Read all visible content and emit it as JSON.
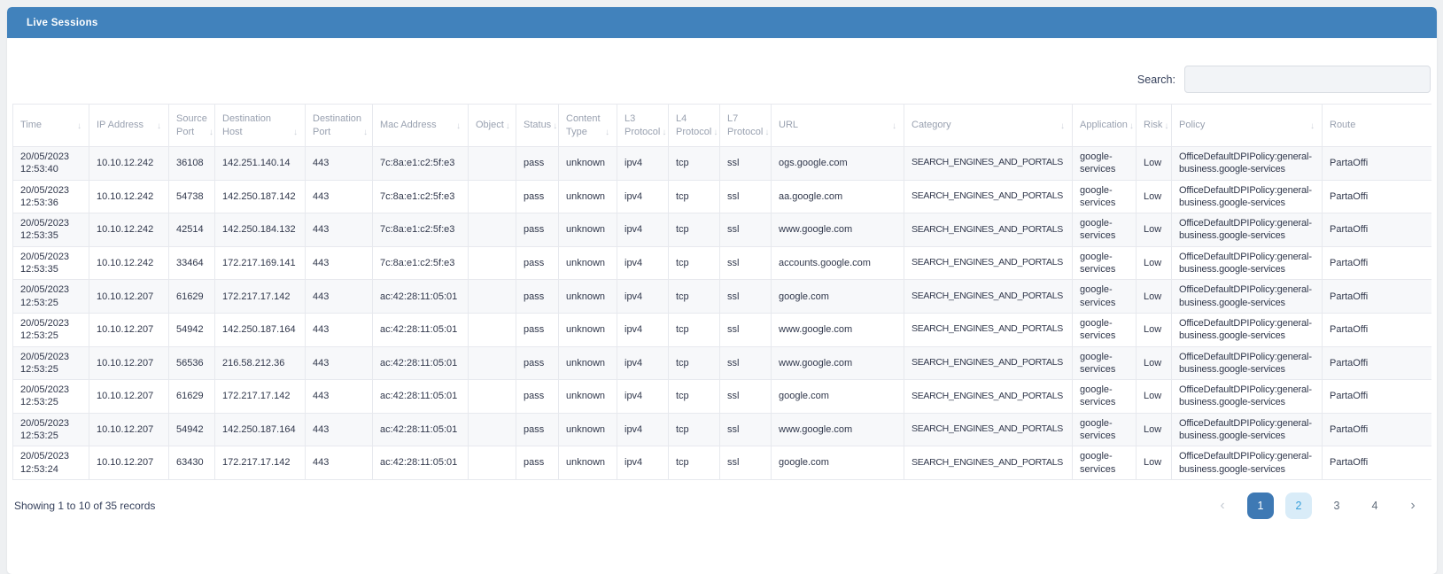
{
  "colors": {
    "panel_header_bar": "#4182BC",
    "active_page_bg": "#3E79B4",
    "highlight_page_bg": "#D9ECF8",
    "highlight_page_text": "#38A0DB",
    "row_stripe": "#F7F8FA"
  },
  "panel": {
    "title": "Live Sessions"
  },
  "search": {
    "label": "Search:",
    "value": "",
    "placeholder": ""
  },
  "table": {
    "columns": [
      {
        "key": "time",
        "label": "Time"
      },
      {
        "key": "ip-address",
        "label": "IP Address"
      },
      {
        "key": "source-port",
        "label": "Source Port"
      },
      {
        "key": "destination-host",
        "label": "Destination Host"
      },
      {
        "key": "destination-port",
        "label": "Destination Port"
      },
      {
        "key": "mac-address",
        "label": "Mac Address"
      },
      {
        "key": "object",
        "label": "Object"
      },
      {
        "key": "status",
        "label": "Status"
      },
      {
        "key": "content-type",
        "label": "Content Type"
      },
      {
        "key": "l3-protocol",
        "label": "L3 Protocol"
      },
      {
        "key": "l4-protocol",
        "label": "L4 Protocol"
      },
      {
        "key": "l7-protocol",
        "label": "L7 Protocol"
      },
      {
        "key": "url",
        "label": "URL"
      },
      {
        "key": "category",
        "label": "Category"
      },
      {
        "key": "application",
        "label": "Application"
      },
      {
        "key": "risk",
        "label": "Risk"
      },
      {
        "key": "policy",
        "label": "Policy"
      },
      {
        "key": "route",
        "label": "Route"
      }
    ],
    "rows": [
      [
        "20/05/2023 12:53:40",
        "10.10.12.242",
        "36108",
        "142.251.140.14",
        "443",
        "7c:8a:e1:c2:5f:e3",
        "",
        "pass",
        "unknown",
        "ipv4",
        "tcp",
        "ssl",
        "ogs.google.com",
        "SEARCH_ENGINES_AND_PORTALS",
        "google-services",
        "Low",
        "OfficeDefaultDPIPolicy:general-business.google-services",
        "PartaOffi"
      ],
      [
        "20/05/2023 12:53:36",
        "10.10.12.242",
        "54738",
        "142.250.187.142",
        "443",
        "7c:8a:e1:c2:5f:e3",
        "",
        "pass",
        "unknown",
        "ipv4",
        "tcp",
        "ssl",
        "aa.google.com",
        "SEARCH_ENGINES_AND_PORTALS",
        "google-services",
        "Low",
        "OfficeDefaultDPIPolicy:general-business.google-services",
        "PartaOffi"
      ],
      [
        "20/05/2023 12:53:35",
        "10.10.12.242",
        "42514",
        "142.250.184.132",
        "443",
        "7c:8a:e1:c2:5f:e3",
        "",
        "pass",
        "unknown",
        "ipv4",
        "tcp",
        "ssl",
        "www.google.com",
        "SEARCH_ENGINES_AND_PORTALS",
        "google-services",
        "Low",
        "OfficeDefaultDPIPolicy:general-business.google-services",
        "PartaOffi"
      ],
      [
        "20/05/2023 12:53:35",
        "10.10.12.242",
        "33464",
        "172.217.169.141",
        "443",
        "7c:8a:e1:c2:5f:e3",
        "",
        "pass",
        "unknown",
        "ipv4",
        "tcp",
        "ssl",
        "accounts.google.com",
        "SEARCH_ENGINES_AND_PORTALS",
        "google-services",
        "Low",
        "OfficeDefaultDPIPolicy:general-business.google-services",
        "PartaOffi"
      ],
      [
        "20/05/2023 12:53:25",
        "10.10.12.207",
        "61629",
        "172.217.17.142",
        "443",
        "ac:42:28:11:05:01",
        "",
        "pass",
        "unknown",
        "ipv4",
        "tcp",
        "ssl",
        "google.com",
        "SEARCH_ENGINES_AND_PORTALS",
        "google-services",
        "Low",
        "OfficeDefaultDPIPolicy:general-business.google-services",
        "PartaOffi"
      ],
      [
        "20/05/2023 12:53:25",
        "10.10.12.207",
        "54942",
        "142.250.187.164",
        "443",
        "ac:42:28:11:05:01",
        "",
        "pass",
        "unknown",
        "ipv4",
        "tcp",
        "ssl",
        "www.google.com",
        "SEARCH_ENGINES_AND_PORTALS",
        "google-services",
        "Low",
        "OfficeDefaultDPIPolicy:general-business.google-services",
        "PartaOffi"
      ],
      [
        "20/05/2023 12:53:25",
        "10.10.12.207",
        "56536",
        "216.58.212.36",
        "443",
        "ac:42:28:11:05:01",
        "",
        "pass",
        "unknown",
        "ipv4",
        "tcp",
        "ssl",
        "www.google.com",
        "SEARCH_ENGINES_AND_PORTALS",
        "google-services",
        "Low",
        "OfficeDefaultDPIPolicy:general-business.google-services",
        "PartaOffi"
      ],
      [
        "20/05/2023 12:53:25",
        "10.10.12.207",
        "61629",
        "172.217.17.142",
        "443",
        "ac:42:28:11:05:01",
        "",
        "pass",
        "unknown",
        "ipv4",
        "tcp",
        "ssl",
        "google.com",
        "SEARCH_ENGINES_AND_PORTALS",
        "google-services",
        "Low",
        "OfficeDefaultDPIPolicy:general-business.google-services",
        "PartaOffi"
      ],
      [
        "20/05/2023 12:53:25",
        "10.10.12.207",
        "54942",
        "142.250.187.164",
        "443",
        "ac:42:28:11:05:01",
        "",
        "pass",
        "unknown",
        "ipv4",
        "tcp",
        "ssl",
        "www.google.com",
        "SEARCH_ENGINES_AND_PORTALS",
        "google-services",
        "Low",
        "OfficeDefaultDPIPolicy:general-business.google-services",
        "PartaOffi"
      ],
      [
        "20/05/2023 12:53:24",
        "10.10.12.207",
        "63430",
        "172.217.17.142",
        "443",
        "ac:42:28:11:05:01",
        "",
        "pass",
        "unknown",
        "ipv4",
        "tcp",
        "ssl",
        "google.com",
        "SEARCH_ENGINES_AND_PORTALS",
        "google-services",
        "Low",
        "OfficeDefaultDPIPolicy:general-business.google-services",
        "PartaOffi"
      ]
    ],
    "sort_icon": "↓"
  },
  "footer": {
    "summary": "Showing 1 to 10 of 35 records"
  },
  "pagination": {
    "prev_label": "‹",
    "next_label": "›",
    "pages": [
      {
        "label": "1",
        "state": "active"
      },
      {
        "label": "2",
        "state": "highlight"
      },
      {
        "label": "3",
        "state": "normal"
      },
      {
        "label": "4",
        "state": "normal"
      }
    ]
  }
}
